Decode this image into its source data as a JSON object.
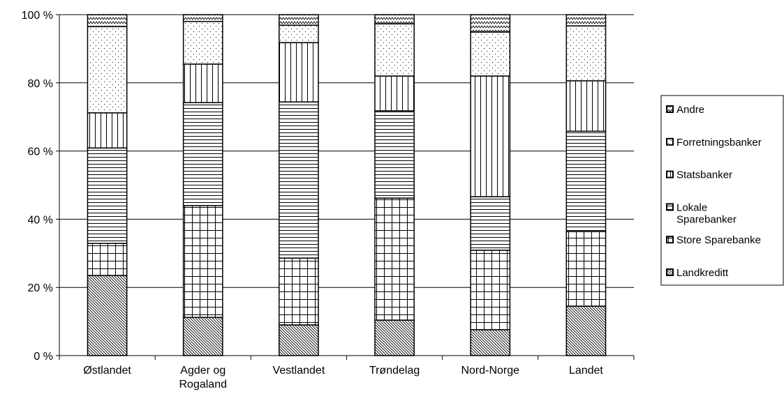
{
  "chart_data": {
    "type": "stacked-bar",
    "categories": [
      "Østlandet",
      "Agder og Rogaland",
      "Vestlandet",
      "Trøndelag",
      "Nord-Norge",
      "Landet"
    ],
    "series": [
      {
        "name": "Landkreditt",
        "color": "#000000",
        "pattern": "diagonal",
        "values": [
          23.5,
          11.2,
          9.0,
          10.4,
          7.6,
          14.5
        ]
      },
      {
        "name": "Store Sparebanke",
        "color": "#000000",
        "pattern": "grid",
        "values": [
          9.4,
          32.8,
          19.6,
          35.8,
          23.3,
          21.9
        ]
      },
      {
        "name": "Lokale Sparebanker",
        "color": "#000000",
        "pattern": "horizontal",
        "values": [
          28.0,
          30.2,
          45.8,
          25.6,
          15.7,
          29.4
        ]
      },
      {
        "name": "Statsbanker",
        "color": "#000000",
        "pattern": "vertical",
        "values": [
          10.3,
          11.3,
          17.4,
          10.2,
          35.4,
          14.8
        ]
      },
      {
        "name": "Forretningsbanker",
        "color": "#000000",
        "pattern": "dots",
        "values": [
          25.3,
          12.5,
          5.1,
          15.3,
          12.9,
          16.1
        ]
      },
      {
        "name": "Andre",
        "color": "#000000",
        "pattern": "zigzag",
        "values": [
          3.5,
          2.0,
          3.1,
          2.7,
          5.1,
          3.3
        ]
      }
    ],
    "ylim": [
      0,
      100
    ],
    "yticks": [
      {
        "value": 0,
        "label": "0 %"
      },
      {
        "value": 20,
        "label": "20 %"
      },
      {
        "value": 40,
        "label": "40 %"
      },
      {
        "value": 60,
        "label": "60 %"
      },
      {
        "value": 80,
        "label": "80 %"
      },
      {
        "value": 100,
        "label": "100 %"
      }
    ],
    "grid": true,
    "legend": "right"
  }
}
